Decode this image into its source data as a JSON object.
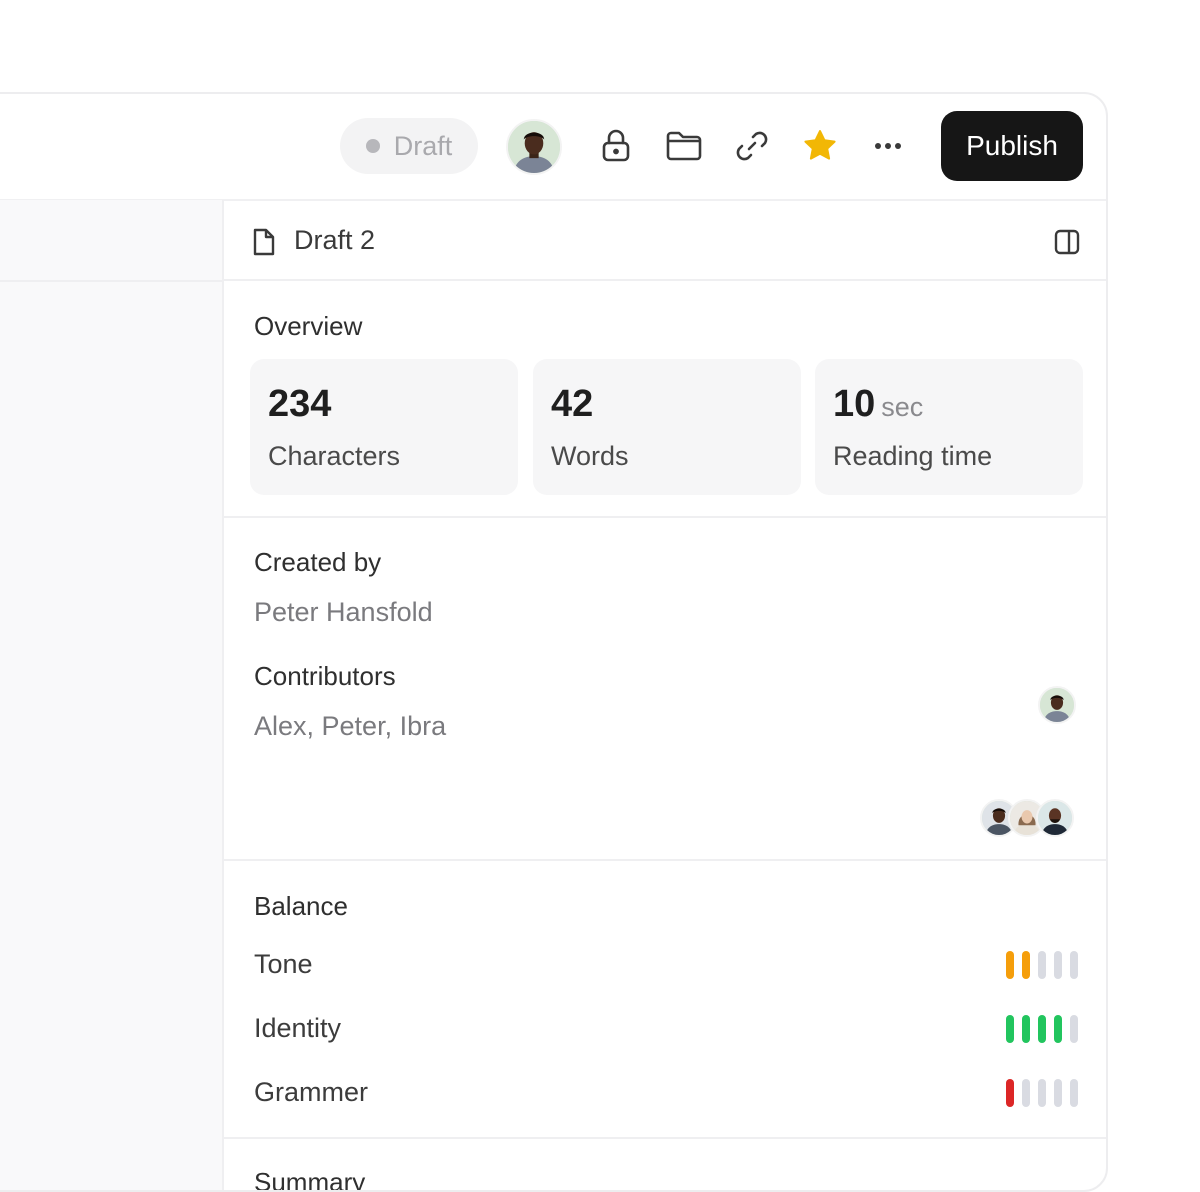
{
  "toolbar": {
    "status_label": "Draft",
    "publish_label": "Publish",
    "icons": [
      "lock-icon",
      "folder-icon",
      "link-icon",
      "star-icon",
      "more-icon"
    ],
    "star_color": "#F2B705"
  },
  "panel": {
    "doc_title": "Draft 2",
    "overview": {
      "title": "Overview",
      "stats": [
        {
          "value": "234",
          "unit": "",
          "label": "Characters"
        },
        {
          "value": "42",
          "unit": "",
          "label": "Words"
        },
        {
          "value": "10",
          "unit": "sec",
          "label": "Reading time"
        }
      ]
    },
    "created_by": {
      "title": "Created by",
      "value": "Peter Hansfold"
    },
    "contributors": {
      "title": "Contributors",
      "value": "Alex, Peter, Ibra"
    },
    "balance": {
      "title": "Balance",
      "items": [
        {
          "label": "Tone",
          "level": 2,
          "max": 5,
          "color": "#F59E0B"
        },
        {
          "label": "Identity",
          "level": 4,
          "max": 5,
          "color": "#22C55E"
        },
        {
          "label": "Grammer",
          "level": 1,
          "max": 5,
          "color": "#DC2626"
        }
      ],
      "empty_color": "#D9DBE2"
    },
    "summary": {
      "title": "Summary"
    }
  }
}
